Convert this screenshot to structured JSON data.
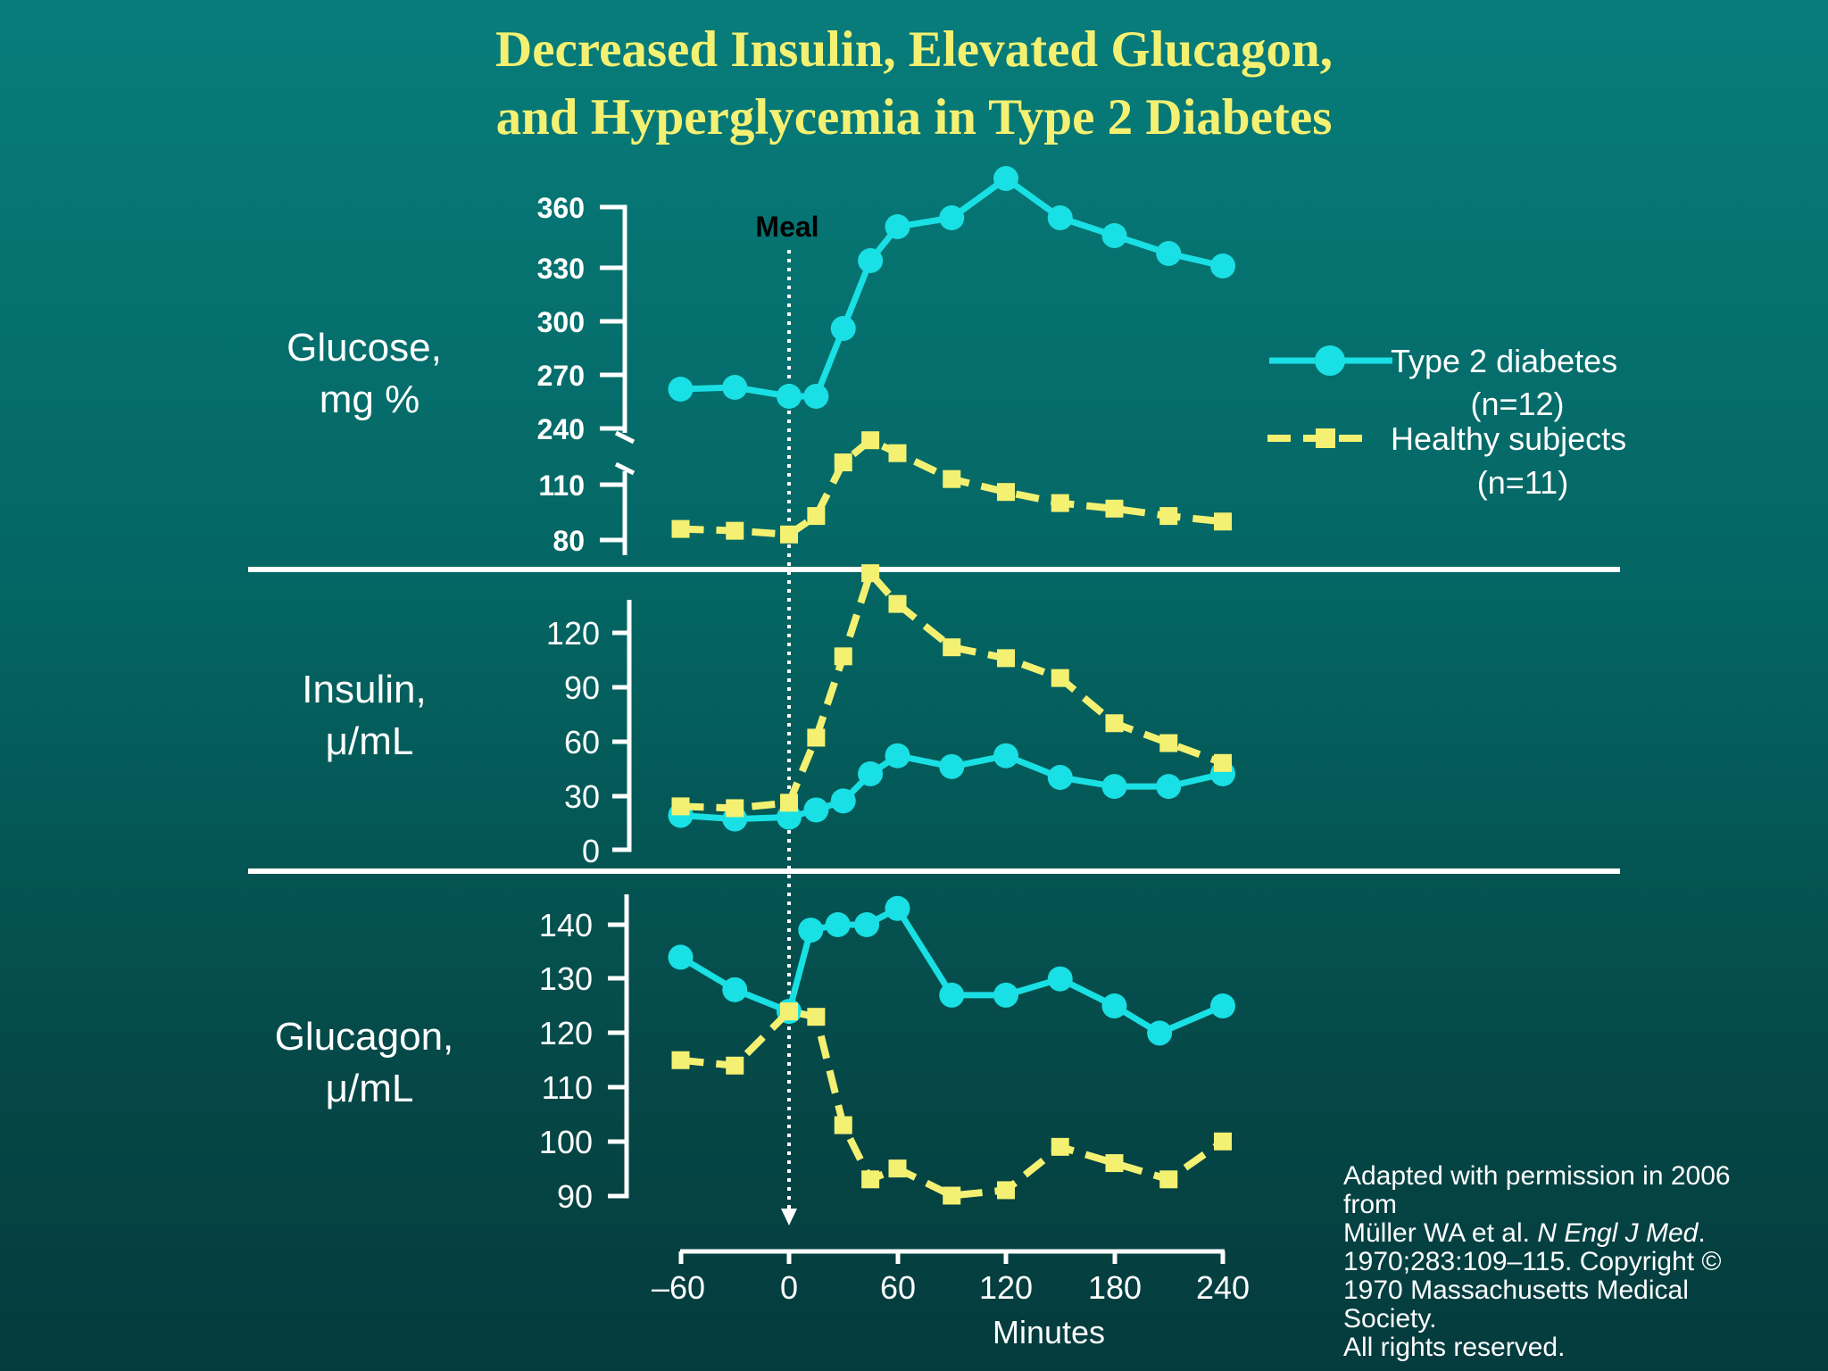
{
  "title_lines": [
    "Decreased Insulin, Elevated Glucagon,",
    "and Hyperglycemia in Type 2 Diabetes"
  ],
  "legend": {
    "t2d_line1": "Type 2 diabetes",
    "t2d_line2": "(n=12)",
    "healthy_line1": "Healthy subjects",
    "healthy_line2": "(n=11)"
  },
  "meal_label": "Meal",
  "colors": {
    "t2d": "#19e0e4",
    "healthy": "#f4f172",
    "axis": "#ffffff",
    "title": "#f4f172"
  },
  "chart_data": [
    {
      "type": "line",
      "ylabel_lines": [
        "Glucose,",
        "mg %"
      ],
      "yticks": [
        "360",
        "330",
        "300",
        "270",
        "240",
        "110",
        "80"
      ],
      "y_scale": "broken axis: 80–110 and 240–360",
      "ylim": [
        80,
        360
      ],
      "xlim": [
        -60,
        240
      ],
      "series": [
        {
          "name": "Type 2 diabetes (n=12)",
          "x": [
            -60,
            -30,
            0,
            15,
            30,
            45,
            60,
            90,
            120,
            150,
            180,
            210,
            240
          ],
          "values": [
            232,
            233,
            228,
            228,
            266,
            304,
            323,
            328,
            350,
            328,
            318,
            308,
            301
          ]
        },
        {
          "name": "Healthy subjects (n=11)",
          "x": [
            -60,
            -30,
            0,
            15,
            30,
            45,
            60,
            90,
            120,
            150,
            180,
            210,
            240
          ],
          "values": [
            86,
            85,
            83,
            93,
            122,
            134,
            127,
            113,
            106,
            100,
            97,
            93,
            90
          ]
        }
      ]
    },
    {
      "type": "line",
      "ylabel_lines": [
        "Insulin,",
        "μ/mL"
      ],
      "yticks": [
        "120",
        "90",
        "60",
        "30",
        "0"
      ],
      "ylim": [
        0,
        135
      ],
      "xlim": [
        -60,
        240
      ],
      "series": [
        {
          "name": "Type 2 diabetes (n=12)",
          "x": [
            -60,
            -30,
            0,
            15,
            30,
            45,
            60,
            90,
            120,
            150,
            180,
            210,
            240
          ],
          "values": [
            19,
            17,
            18,
            22,
            27,
            42,
            52,
            46,
            52,
            40,
            35,
            35,
            42
          ]
        },
        {
          "name": "Healthy subjects (n=11)",
          "x": [
            -60,
            -30,
            0,
            15,
            30,
            45,
            60,
            90,
            120,
            150,
            180,
            210,
            240
          ],
          "values": [
            24,
            23,
            26,
            62,
            107,
            153,
            136,
            112,
            106,
            95,
            70,
            59,
            48
          ]
        }
      ]
    },
    {
      "type": "line",
      "ylabel_lines": [
        "Glucagon,",
        "μ/mL"
      ],
      "yticks": [
        "140",
        "130",
        "120",
        "110",
        "100",
        "90"
      ],
      "ylim": [
        90,
        145
      ],
      "xlim": [
        -60,
        240
      ],
      "xticks": [
        "–60",
        "0",
        "60",
        "120",
        "180",
        "240"
      ],
      "xlabel": "Minutes",
      "series": [
        {
          "name": "Type 2 diabetes (n=12)",
          "x": [
            -60,
            -30,
            0,
            12,
            27,
            43,
            60,
            90,
            120,
            150,
            180,
            205,
            240
          ],
          "values": [
            134,
            128,
            124,
            139,
            140,
            140,
            143,
            127,
            127,
            130,
            125,
            120,
            125
          ]
        },
        {
          "name": "Healthy subjects (n=11)",
          "x": [
            -60,
            -30,
            0,
            15,
            30,
            45,
            60,
            90,
            120,
            150,
            180,
            210,
            240
          ],
          "values": [
            115,
            114,
            124,
            123,
            103,
            93,
            95,
            90,
            91,
            99,
            96,
            93,
            100
          ]
        }
      ]
    }
  ],
  "source_lines": [
    "Adapted with permission in 2006",
    "from",
    "Müller WA et al. ",
    "N Engl J Med",
    ".",
    "1970;283:109–115. Copyright ©",
    "1970 Massachusetts Medical",
    "Society.",
    "All rights reserved."
  ]
}
